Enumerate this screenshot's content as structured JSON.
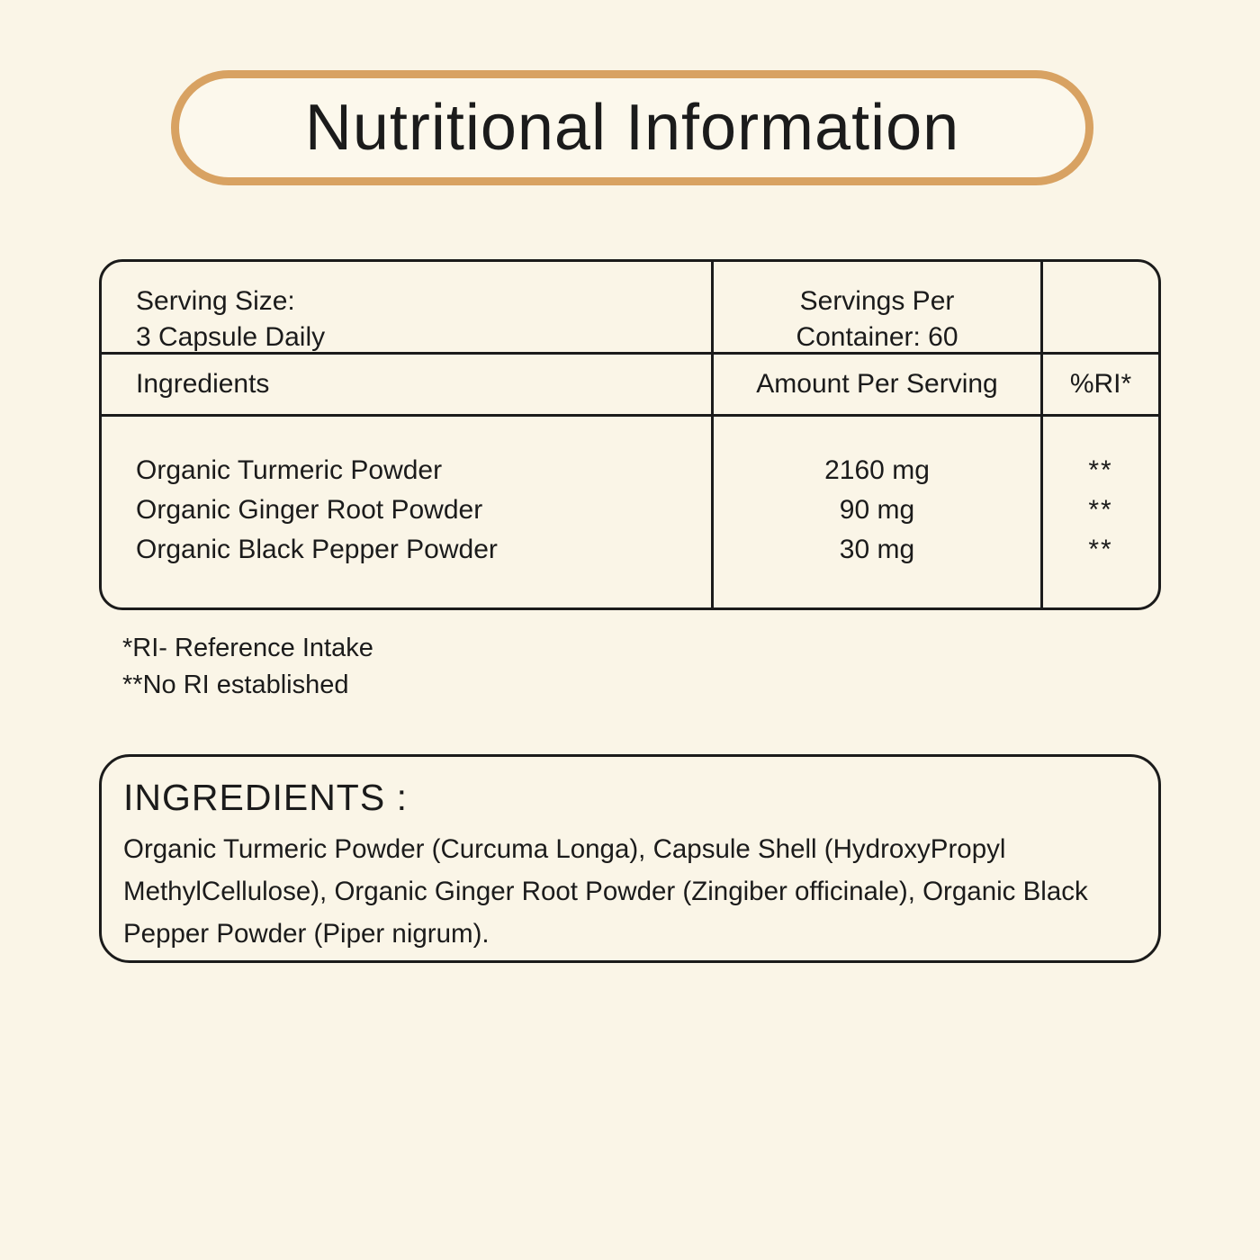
{
  "page": {
    "background_color": "#faf5e7",
    "text_color": "#1b1b1b",
    "accent_border_color": "#d8a262"
  },
  "title": {
    "text": "Nutritional Information"
  },
  "table": {
    "serving_size_line1": "Serving Size:",
    "serving_size_line2": "3 Capsule Daily",
    "servings_per_line1": "Servings Per",
    "servings_per_line2": "Container: 60",
    "headers": {
      "ingredients": "Ingredients",
      "amount": "Amount Per Serving",
      "ri": "%RI*"
    },
    "rows": [
      {
        "name": "Organic Turmeric Powder",
        "amount": "2160 mg",
        "ri": "**"
      },
      {
        "name": "Organic Ginger Root Powder",
        "amount": "90 mg",
        "ri": "**"
      },
      {
        "name": "Organic Black Pepper Powder",
        "amount": "30 mg",
        "ri": "**"
      }
    ]
  },
  "footnotes": {
    "line1": "*RI- Reference Intake",
    "line2": "**No RI established"
  },
  "ingredients_box": {
    "heading": "INGREDIENTS :",
    "body": "Organic Turmeric Powder (Curcuma Longa), Capsule Shell (HydroxyPropyl\nMethylCellulose), Organic Ginger Root Powder (Zingiber officinale), Organic Black\nPepper Powder (Piper nigrum)."
  }
}
